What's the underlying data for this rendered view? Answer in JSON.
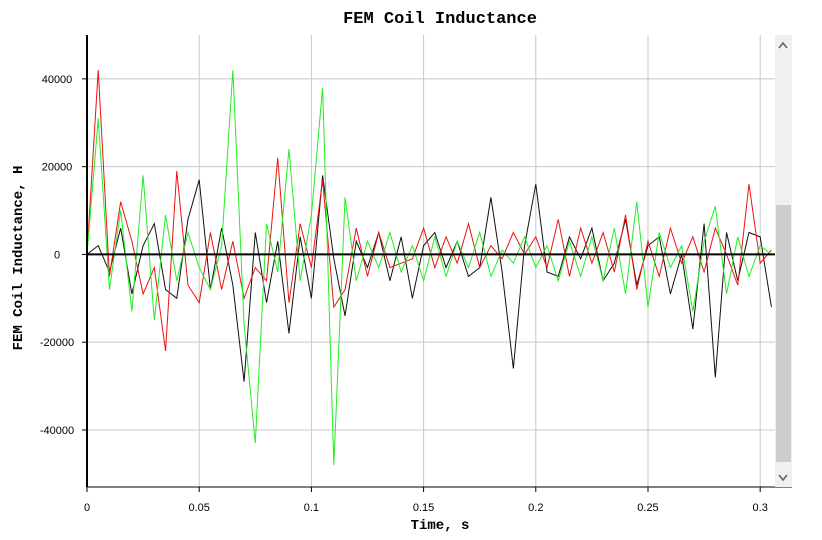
{
  "chart_data": {
    "type": "line",
    "title": "FEM Coil Inductance",
    "x_label": "Time, s",
    "y_label": "FEM Coil Inductance, H",
    "x": [
      0,
      0.005,
      0.01,
      0.015,
      0.02,
      0.025,
      0.03,
      0.035,
      0.04,
      0.045,
      0.05,
      0.055,
      0.06,
      0.065,
      0.07,
      0.075,
      0.08,
      0.085,
      0.09,
      0.095,
      0.1,
      0.105,
      0.11,
      0.115,
      0.12,
      0.125,
      0.13,
      0.135,
      0.14,
      0.145,
      0.15,
      0.155,
      0.16,
      0.165,
      0.17,
      0.175,
      0.18,
      0.185,
      0.19,
      0.195,
      0.2,
      0.205,
      0.21,
      0.215,
      0.22,
      0.225,
      0.23,
      0.235,
      0.24,
      0.245,
      0.25,
      0.255,
      0.26,
      0.265,
      0.27,
      0.275,
      0.28,
      0.285,
      0.29,
      0.295,
      0.3,
      0.305
    ],
    "series": [
      {
        "color": "#111111",
        "values": [
          0,
          2000,
          -4000,
          6000,
          -9000,
          2000,
          7000,
          -8000,
          -10000,
          8000,
          17000,
          -8000,
          6000,
          -7000,
          -29000,
          5000,
          -11000,
          3000,
          -18000,
          4000,
          -10000,
          18000,
          -1000,
          -14000,
          3000,
          -3000,
          5000,
          -6000,
          4000,
          -10000,
          2000,
          5000,
          -3000,
          3000,
          -5000,
          -3000,
          13000,
          -4000,
          -26000,
          2000,
          16000,
          -4000,
          -5000,
          4000,
          -1000,
          6000,
          -6000,
          -2000,
          8000,
          -7000,
          2000,
          4000,
          -9000,
          0,
          -17000,
          7000,
          -28000,
          5000,
          -6000,
          5000,
          4000,
          -12000
        ]
      },
      {
        "color": "#ee1111",
        "values": [
          0,
          42000,
          -5000,
          12000,
          3000,
          -9000,
          -3000,
          -22000,
          19000,
          -7000,
          -11000,
          5000,
          -8000,
          3000,
          -10000,
          -3000,
          -6000,
          22000,
          -11000,
          7000,
          -3000,
          17000,
          -12000,
          -8000,
          6000,
          -5000,
          5000,
          -3000,
          -2000,
          -1000,
          6000,
          -3000,
          4000,
          -2000,
          7000,
          -3000,
          2000,
          -1000,
          5000,
          0,
          4000,
          -3000,
          8000,
          -5000,
          6000,
          -2000,
          5000,
          -4000,
          9000,
          -8000,
          3000,
          -5000,
          6000,
          -2000,
          4000,
          -4000,
          6000,
          0,
          -7000,
          16000,
          -2000,
          1000
        ]
      },
      {
        "color": "#22ee22",
        "values": [
          0,
          31000,
          -8000,
          10000,
          -13000,
          18000,
          -15000,
          9000,
          -6000,
          5000,
          -3000,
          -8000,
          2000,
          42000,
          -16000,
          -43000,
          7000,
          -4000,
          24000,
          -6000,
          9000,
          38000,
          -48000,
          13000,
          -6000,
          3000,
          -3000,
          5000,
          -4000,
          2000,
          -6000,
          4000,
          -5000,
          3000,
          -3000,
          5000,
          -5000,
          1000,
          -2000,
          4000,
          -3000,
          2000,
          -6000,
          3000,
          -5000,
          4000,
          -6000,
          6000,
          -9000,
          12000,
          -12000,
          5000,
          -3000,
          2000,
          -13000,
          3000,
          11000,
          -9000,
          4000,
          -5000,
          2000,
          0
        ]
      }
    ],
    "xlim": [
      0,
      0.3066
    ],
    "ylim": [
      -53000,
      50000
    ],
    "xticks": [
      0,
      0.05,
      0.1,
      0.15,
      0.2,
      0.25,
      0.3
    ],
    "yticks": [
      -40000,
      -20000,
      0,
      20000,
      40000
    ],
    "grid": true
  }
}
